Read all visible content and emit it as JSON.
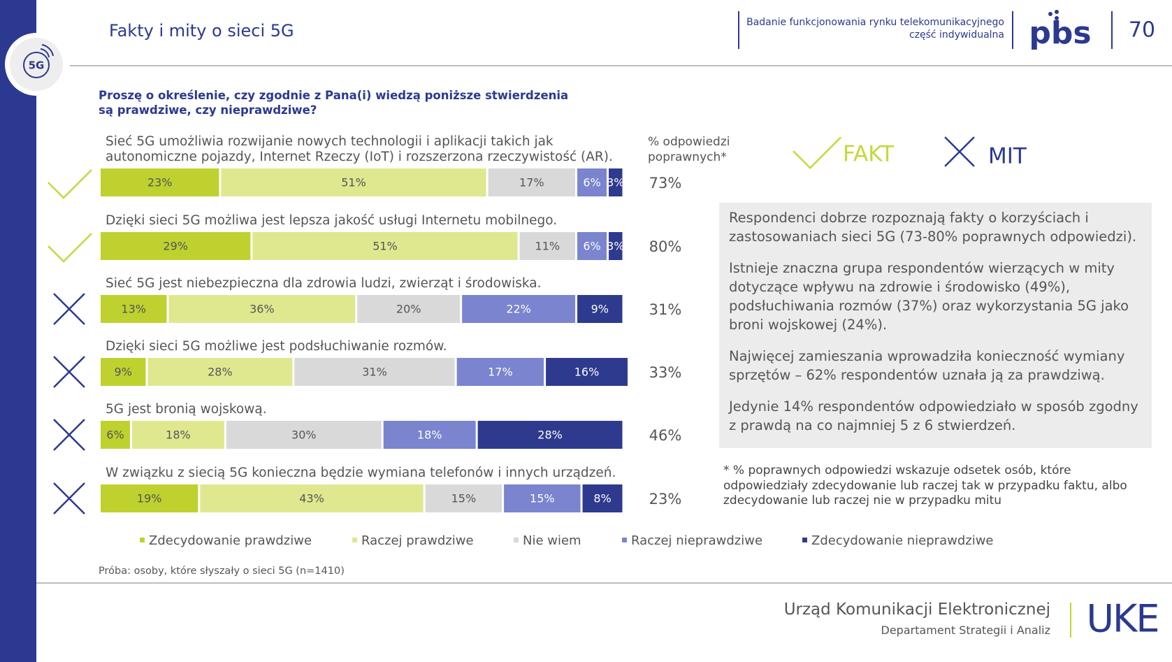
{
  "header": {
    "badge": "5G",
    "title": "Fakty i mity o sieci 5G",
    "subtitle": [
      "Badanie funkcjonowania rynku telekomunikacyjnego",
      "część indywidualna"
    ],
    "logo": "pbs",
    "page_number": "70"
  },
  "question": "Proszę o określenie, czy zgodnie z Pana(i) wiedzą poniższe stwierdzenia są prawdziwe, czy nieprawdziwe?",
  "chart_data": {
    "type": "bar",
    "orientation": "horizontal",
    "stacked": true,
    "categories": [
      "Sieć 5G umożliwia rozwijanie nowych technologii i aplikacji takich jak autonomiczne pojazdy, Internet Rzeczy (IoT) i rozszerzona rzeczywistość (AR).",
      "Dzięki sieci 5G możliwa jest lepsza jakość usługi Internetu mobilnego.",
      "Sieć 5G jest niebezpieczna dla zdrowia ludzi, zwierząt i środowiska.",
      "Dzięki sieci 5G możliwe jest podsłuchiwanie rozmów.",
      "5G jest bronią wojskową.",
      "W związku z siecią 5G konieczna będzie wymiana telefonów i innych urządzeń."
    ],
    "is_fact": [
      true,
      true,
      false,
      false,
      false,
      false
    ],
    "xlim": [
      0,
      101
    ],
    "series": [
      {
        "name": "Zdecydowanie prawdziwe",
        "color": "#bfd12f",
        "values": [
          23,
          29,
          13,
          9,
          6,
          19
        ],
        "value_labels": [
          "23%",
          "29%",
          "13%",
          "9%",
          "6%",
          "19%"
        ]
      },
      {
        "name": "Raczej prawdziwe",
        "color": "#dfe88f",
        "values": [
          51,
          51,
          36,
          28,
          18,
          43
        ],
        "value_labels": [
          "51%",
          "51%",
          "36%",
          "28%",
          "18%",
          "43%"
        ]
      },
      {
        "name": "Nie wiem",
        "color": "#d9d9d9",
        "values": [
          17,
          11,
          20,
          31,
          30,
          15
        ],
        "value_labels": [
          "17%",
          "11%",
          "20%",
          "31%",
          "30%",
          "15%"
        ]
      },
      {
        "name": "Raczej nieprawdziwe",
        "color": "#7a84cf",
        "values": [
          6,
          6,
          22,
          17,
          18,
          15
        ],
        "value_labels": [
          "6%",
          "6%",
          "22%",
          "17%",
          "18%",
          "15%"
        ]
      },
      {
        "name": "Zdecydowanie nieprawdziwe",
        "color": "#2e3a8e",
        "values": [
          3,
          3,
          9,
          16,
          28,
          8
        ],
        "value_labels": [
          "3%",
          "3%",
          "9%",
          "16%",
          "28%",
          "8%"
        ]
      }
    ],
    "correct": {
      "title": [
        "% odpowiedzi",
        "poprawnych*"
      ],
      "values": [
        73,
        80,
        31,
        33,
        46,
        23
      ],
      "value_labels": [
        "73%",
        "80%",
        "31%",
        "33%",
        "46%",
        "23%"
      ]
    },
    "key": {
      "fact": "FAKT",
      "myth": "MIT"
    }
  },
  "summary": [
    "Respondenci dobrze rozpoznają fakty o korzyściach i zastosowaniach sieci 5G (73-80% poprawnych odpowiedzi).",
    "Istnieje znaczna grupa respondentów wierzących w mity dotyczące wpływu na zdrowie i środowisko (49%), podsłuchiwania rozmów (37%) oraz wykorzystania 5G jako broni wojskowej (24%).",
    "Najwięcej zamieszania wprowadziła konieczność wymiany sprzętów – 62% respondentów uznała ją za prawdziwą.",
    "Jedynie 14% respondentów odpowiedziało w sposób zgodny z prawdą na co najmniej 5 z 6 stwierdzeń."
  ],
  "footnote": "* % poprawnych odpowiedzi wskazuje odsetek osób, które odpowiedziały zdecydowanie lub raczej tak w przypadku faktu, albo zdecydowanie lub raczej nie w przypadku mitu",
  "sample": "Próba: osoby, które słyszały o sieci 5G (n=1410)",
  "footer": {
    "organization": "Urząd Komunikacji Elektronicznej",
    "department": "Departament Strategii i Analiz",
    "logo": "UKE"
  }
}
